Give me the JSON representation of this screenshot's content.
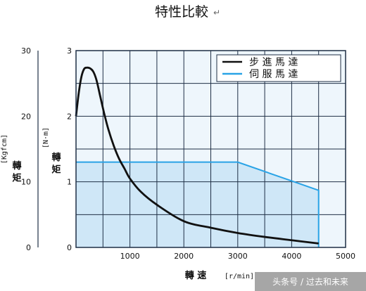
{
  "title": "特性比較",
  "return_mark": "↵",
  "watermark": "头条号 / 过去和未来",
  "colors": {
    "black_curve": "#111111",
    "blue_curve": "#29a3e6",
    "blue_fill": "#cfe7f7",
    "chart_bg": "#eef6fc",
    "grid": "#1f2f45"
  },
  "chart_data": {
    "type": "line",
    "x_axis": {
      "label": "轉 速",
      "unit": "[r/min]",
      "range": [
        0,
        5000
      ],
      "ticks": [
        "1000",
        "2000",
        "3000",
        "4000",
        "5000"
      ]
    },
    "y_axis_left": {
      "label": "轉 矩",
      "unit": "[Kgfcm]",
      "range": [
        0,
        30
      ],
      "ticks": [
        "0",
        "10",
        "20",
        "30"
      ]
    },
    "y_axis_right": {
      "label": "轉 矩",
      "unit": "[N·m]",
      "range": [
        0,
        3
      ],
      "ticks": [
        "0",
        "1",
        "2",
        "3"
      ]
    },
    "grid": true,
    "legend_position": "top-right",
    "series": [
      {
        "name": "步 進 馬 達",
        "color": "#111111",
        "x": [
          0,
          50,
          100,
          150,
          200,
          260,
          320,
          380,
          450,
          520,
          600,
          700,
          800,
          900,
          1000,
          1200,
          1500,
          2000,
          2500,
          3000,
          3500,
          4000,
          4500
        ],
        "y": [
          2.0,
          2.35,
          2.6,
          2.72,
          2.74,
          2.73,
          2.68,
          2.55,
          2.3,
          2.05,
          1.8,
          1.55,
          1.35,
          1.2,
          1.05,
          0.85,
          0.65,
          0.4,
          0.3,
          0.22,
          0.16,
          0.11,
          0.06
        ]
      },
      {
        "name": "伺 服 馬 達",
        "color": "#29a3e6",
        "fill": true,
        "x": [
          0,
          3000,
          4500,
          4500
        ],
        "y": [
          1.3,
          1.3,
          0.87,
          0
        ]
      }
    ]
  }
}
